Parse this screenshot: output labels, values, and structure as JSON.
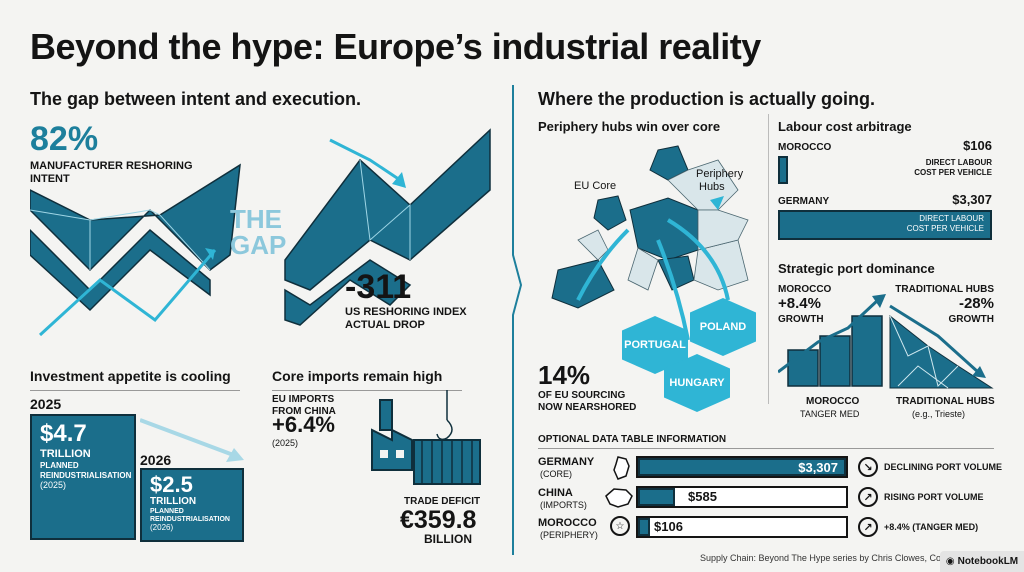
{
  "title": "Beyond the hype: Europe’s industrial reality",
  "left": {
    "heading": "The gap between intent and execution.",
    "intent": {
      "value": "82%",
      "label": "MANUFACTURER RESHORING INTENT"
    },
    "gap_label_1": "THE",
    "gap_label_2": "GAP",
    "drop": {
      "value": "-311",
      "label_1": "US RESHORING INDEX",
      "label_2": "ACTUAL DROP"
    },
    "investment": {
      "heading": "Investment appetite is cooling",
      "year_a": "2025",
      "box_a": {
        "value": "$4.7",
        "unit": "TRILLION",
        "label_1": "PLANNED",
        "label_2": "REINDUSTRIALISATION",
        "sub": "(2025)"
      },
      "year_b": "2026",
      "box_b": {
        "value": "$2.5",
        "unit": "TRILLION",
        "label_1": "PLANNED",
        "label_2": "REINDUSTRIALISATION",
        "sub": "(2026)"
      }
    },
    "imports": {
      "heading": "Core imports remain high",
      "label_1": "EU IMPORTS",
      "label_2": "FROM CHINA",
      "value": "+6.4%",
      "sub": "(2025)",
      "deficit_label": "TRADE DEFICIT",
      "deficit_value": "€359.8",
      "deficit_unit": "BILLION"
    }
  },
  "right": {
    "heading": "Where the production is actually going.",
    "map": {
      "heading": "Periphery hubs win over core",
      "core_label": "EU Core",
      "periphery_1": "Periphery",
      "periphery_2": "Hubs",
      "hubs": [
        "PORTUGAL",
        "POLAND",
        "HUNGARY"
      ],
      "nearshore_value": "14%",
      "nearshore_label_1": "OF EU SOURCING",
      "nearshore_label_2": "NOW NEARSHORED"
    },
    "labour": {
      "heading": "Labour cost arbitrage",
      "rows": [
        {
          "country": "MOROCCO",
          "value": "$106",
          "label_1": "DIRECT LABOUR",
          "label_2": "COST PER VEHICLE",
          "amount": 106
        },
        {
          "country": "GERMANY",
          "value": "$3,307",
          "label_1": "DIRECT LABOUR",
          "label_2": "COST PER VEHICLE",
          "amount": 3307
        }
      ]
    },
    "ports": {
      "heading": "Strategic port dominance",
      "left": {
        "name": "MOROCCO",
        "value": "+8.4%",
        "label": "GROWTH",
        "caption_1": "MOROCCO",
        "caption_2": "TANGER MED"
      },
      "right": {
        "name": "TRADITIONAL HUBS",
        "value": "-28%",
        "label": "GROWTH",
        "caption_1": "TRADITIONAL HUBS",
        "caption_2": "(e.g., Trieste)"
      }
    },
    "table": {
      "heading": "OPTIONAL DATA TABLE INFORMATION",
      "rows": [
        {
          "country": "GERMANY",
          "role": "(CORE)",
          "value": "$3,307",
          "amount": 3307,
          "note": "DECLINING PORT VOLUME",
          "icon": "arrow-down-right-icon"
        },
        {
          "country": "CHINA",
          "role": "(IMPORTS)",
          "value": "$585",
          "amount": 585,
          "note": "RISING PORT VOLUME",
          "icon": "arrow-up-right-icon"
        },
        {
          "country": "MOROCCO",
          "role": "(PERIPHERY)",
          "value": "$106",
          "amount": 106,
          "note": "+8.4% (TANGER MED)",
          "icon": "arrow-up-right-icon"
        }
      ]
    }
  },
  "footer": {
    "credit": "Supply Chain: Beyond The Hype series by Chris Clowes, Consultant",
    "brand": "NotebookLM"
  },
  "colors": {
    "accent": "#1d7f9c",
    "dark": "#1b6e8b",
    "light": "#2fb5d5",
    "outline": "#0f2f3c"
  }
}
